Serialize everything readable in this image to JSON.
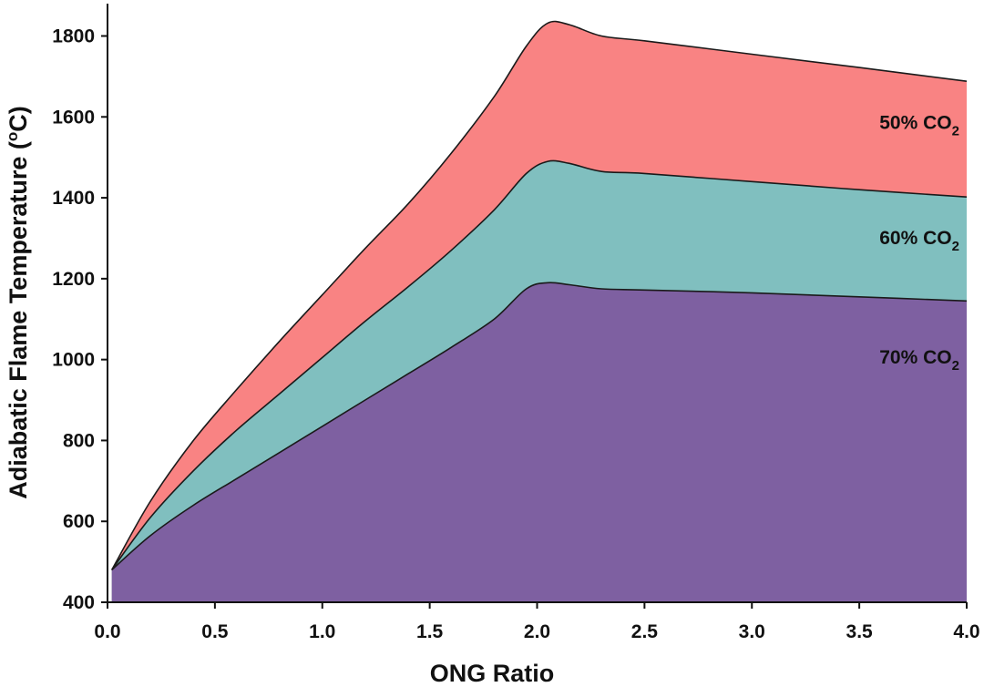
{
  "chart_data": {
    "type": "area",
    "xlabel": "ONG Ratio",
    "ylabel_prefix": "Adiabatic Flame Temperature (",
    "ylabel_sup": "o",
    "ylabel_suffix": "C)",
    "xlim": [
      0.0,
      4.0
    ],
    "ylim": [
      400,
      1880
    ],
    "xticks": [
      0.0,
      0.5,
      1.0,
      1.5,
      2.0,
      2.5,
      3.0,
      3.5,
      4.0
    ],
    "xtick_labels": [
      "0.0",
      "0.5",
      "1.0",
      "1.5",
      "2.0",
      "2.5",
      "3.0",
      "3.5",
      "4.0"
    ],
    "yticks": [
      400,
      600,
      800,
      1000,
      1200,
      1400,
      1600,
      1800
    ],
    "ytick_labels": [
      "400",
      "600",
      "800",
      "1000",
      "1200",
      "1400",
      "1600",
      "1800"
    ],
    "grid": false,
    "series": [
      {
        "name": "50% CO2",
        "label_main": "50% CO",
        "label_sub": "2",
        "label_at": [
          3.78,
          1570
        ],
        "color": "#f98383",
        "x": [
          0.02,
          0.2,
          0.4,
          0.6,
          0.8,
          1.0,
          1.2,
          1.4,
          1.6,
          1.8,
          1.95,
          2.05,
          2.15,
          2.3,
          2.5,
          3.0,
          3.5,
          4.0
        ],
        "y": [
          480,
          650,
          800,
          925,
          1045,
          1160,
          1275,
          1385,
          1510,
          1650,
          1775,
          1832,
          1828,
          1800,
          1788,
          1755,
          1722,
          1688
        ]
      },
      {
        "name": "60% CO2",
        "label_main": "60% CO",
        "label_sub": "2",
        "label_at": [
          3.78,
          1285
        ],
        "color": "#80bfbf",
        "x": [
          0.02,
          0.2,
          0.4,
          0.6,
          0.8,
          1.0,
          1.2,
          1.4,
          1.6,
          1.8,
          1.95,
          2.05,
          2.15,
          2.3,
          2.5,
          3.0,
          3.5,
          4.0
        ],
        "y": [
          480,
          610,
          725,
          825,
          915,
          1005,
          1095,
          1180,
          1270,
          1370,
          1460,
          1490,
          1485,
          1465,
          1460,
          1440,
          1420,
          1402
        ]
      },
      {
        "name": "70% CO2",
        "label_main": "70% CO",
        "label_sub": "2",
        "label_at": [
          3.78,
          990
        ],
        "color": "#7e60a1",
        "x": [
          0.02,
          0.2,
          0.4,
          0.6,
          0.8,
          1.0,
          1.2,
          1.4,
          1.6,
          1.8,
          1.95,
          2.05,
          2.15,
          2.3,
          2.5,
          3.0,
          3.5,
          4.0
        ],
        "y": [
          480,
          565,
          640,
          705,
          770,
          835,
          900,
          965,
          1030,
          1100,
          1175,
          1190,
          1185,
          1175,
          1172,
          1165,
          1155,
          1145
        ]
      }
    ]
  }
}
